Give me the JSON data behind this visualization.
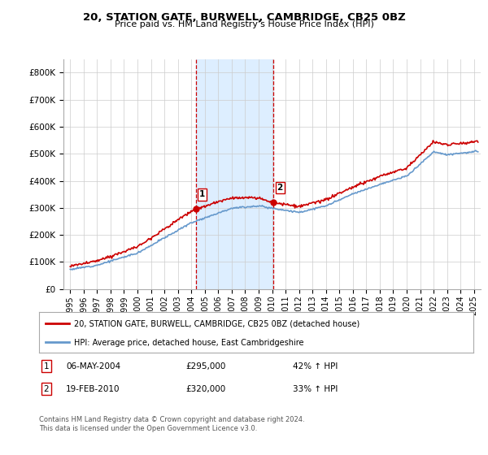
{
  "title": "20, STATION GATE, BURWELL, CAMBRIDGE, CB25 0BZ",
  "subtitle": "Price paid vs. HM Land Registry's House Price Index (HPI)",
  "legend_line1": "20, STATION GATE, BURWELL, CAMBRIDGE, CB25 0BZ (detached house)",
  "legend_line2": "HPI: Average price, detached house, East Cambridgeshire",
  "footnote": "Contains HM Land Registry data © Crown copyright and database right 2024.\nThis data is licensed under the Open Government Licence v3.0.",
  "annotation1_label": "1",
  "annotation1_date": "06-MAY-2004",
  "annotation1_price": "£295,000",
  "annotation1_hpi": "42% ↑ HPI",
  "annotation2_label": "2",
  "annotation2_date": "19-FEB-2010",
  "annotation2_price": "£320,000",
  "annotation2_hpi": "33% ↑ HPI",
  "red_color": "#cc0000",
  "blue_color": "#6699cc",
  "shade_color": "#ddeeff",
  "ylim_min": 0,
  "ylim_max": 850000,
  "yticks": [
    0,
    100000,
    200000,
    300000,
    400000,
    500000,
    600000,
    700000,
    800000
  ],
  "ytick_labels": [
    "£0",
    "£100K",
    "£200K",
    "£300K",
    "£400K",
    "£500K",
    "£600K",
    "£700K",
    "£800K"
  ],
  "sale1_x": 2004.35,
  "sale1_y": 295000,
  "sale2_x": 2010.12,
  "sale2_y": 320000,
  "xmin": 1994.5,
  "xmax": 2025.5,
  "xticks": [
    1995,
    1996,
    1997,
    1998,
    1999,
    2000,
    2001,
    2002,
    2003,
    2004,
    2005,
    2006,
    2007,
    2008,
    2009,
    2010,
    2011,
    2012,
    2013,
    2014,
    2015,
    2016,
    2017,
    2018,
    2019,
    2020,
    2021,
    2022,
    2023,
    2024,
    2025
  ]
}
